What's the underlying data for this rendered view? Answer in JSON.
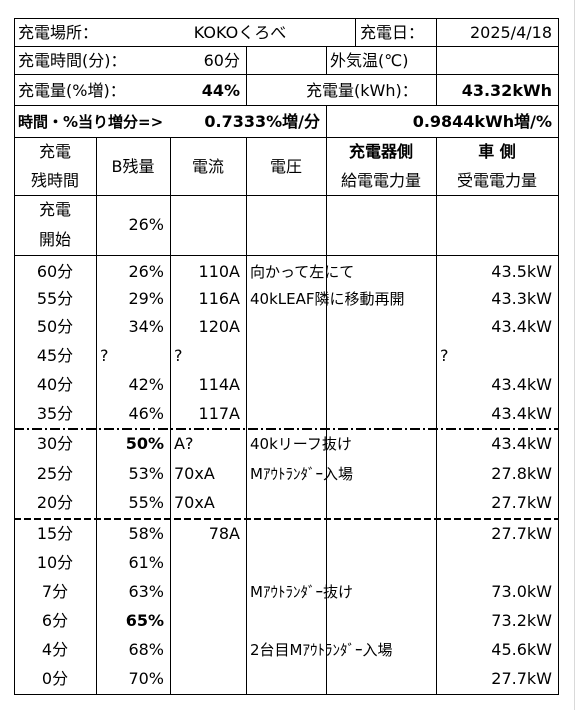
{
  "top": {
    "place_label": "充電場所：",
    "place_value": "KOKOくろべ",
    "date_label": "充電日：",
    "date_value": "2025/4/18",
    "time_label": "充電時間(分)：",
    "time_value": "60分",
    "temp_label": "外気温(℃)",
    "temp_value": "",
    "pct_label": "充電量(%増)：",
    "pct_value": "44%",
    "kwh_label": "充電量(kWh)：",
    "kwh_value": "43.32kWh",
    "rate_label": "時間・%当り増分=>",
    "rate_pct": "0.7333%増/分",
    "rate_kwh": "0.9844kWh増/%"
  },
  "headers": {
    "remaining_l1": "充電",
    "remaining_l2": "残時間",
    "battery": "B残量",
    "current": "電流",
    "voltage": "電圧",
    "charger_l1": "充電器側",
    "charger_l2": "給電電力量",
    "vehicle_l1": "車 側",
    "vehicle_l2": "受電電力量"
  },
  "start": {
    "remaining_l1": "充電",
    "remaining_l2": "開始",
    "battery": "26%"
  },
  "rows": [
    {
      "remaining": "60分",
      "battery": "26%",
      "current": "110A",
      "note": "向かって左にて",
      "power": "43.5kW"
    },
    {
      "remaining": "55分",
      "battery": "29%",
      "current": "116A",
      "note": "40kLEAF隣に移動再開",
      "power": "43.3kW"
    },
    {
      "remaining": "50分",
      "battery": "34%",
      "current": "120A",
      "note": "",
      "power": "43.4kW"
    },
    {
      "remaining": "45分",
      "battery": "?",
      "current": "?",
      "note": "",
      "power": "?"
    },
    {
      "remaining": "40分",
      "battery": "42%",
      "current": "114A",
      "note": "",
      "power": "43.4kW"
    },
    {
      "remaining": "35分",
      "battery": "46%",
      "current": "117A",
      "note": "",
      "power": "43.4kW"
    },
    {
      "remaining": "30分",
      "battery": "50%",
      "current": "A?",
      "note": "40kリーフ抜け",
      "power": "43.4kW"
    },
    {
      "remaining": "25分",
      "battery": "53%",
      "current": "70xA",
      "note": "Mｱｳﾄﾗﾝﾀﾞｰ入場",
      "power": "27.8kW"
    },
    {
      "remaining": "20分",
      "battery": "55%",
      "current": "70xA",
      "note": "",
      "power": "27.7kW"
    },
    {
      "remaining": "15分",
      "battery": "58%",
      "current": "78A",
      "note": "",
      "power": "27.7kW"
    },
    {
      "remaining": "10分",
      "battery": "61%",
      "current": "",
      "note": "",
      "power": ""
    },
    {
      "remaining": "7分",
      "battery": "63%",
      "current": "",
      "note": "Mｱｳﾄﾗﾝﾀﾞｰ抜け",
      "power": "73.0kW"
    },
    {
      "remaining": "6分",
      "battery": "65%",
      "current": "",
      "note": "",
      "power": "73.2kW"
    },
    {
      "remaining": "4分",
      "battery": "68%",
      "current": "",
      "note": "2台目Mｱｳﾄﾗﾝﾀﾞｰ入場",
      "power": "45.6kW"
    },
    {
      "remaining": "0分",
      "battery": "70%",
      "current": "",
      "note": "",
      "power": "27.7kW"
    }
  ]
}
